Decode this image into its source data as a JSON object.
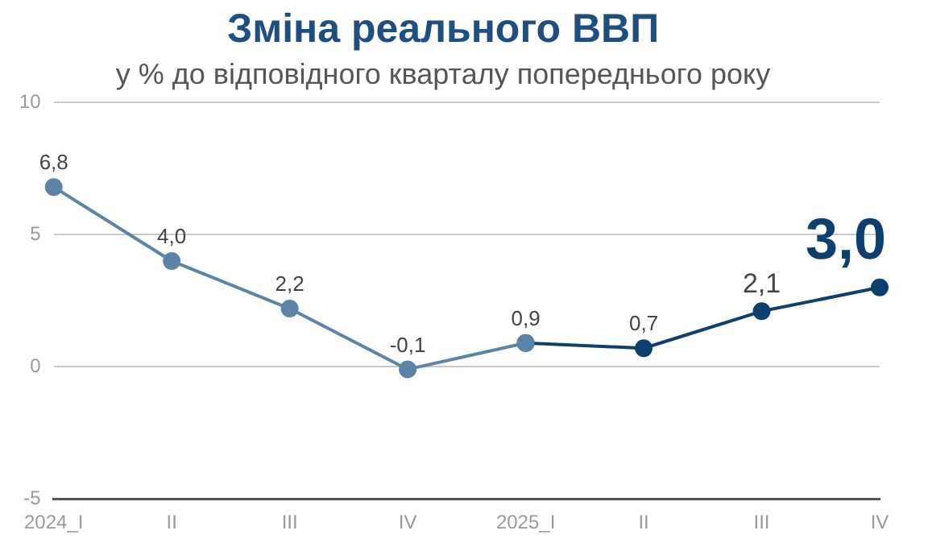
{
  "chart_data": {
    "type": "line",
    "title": "Зміна реального ВВП",
    "subtitle": "у % до відповідного кварталу попереднього року",
    "categories": [
      "2024_I",
      "II",
      "III",
      "IV",
      "2025_I",
      "II",
      "III",
      "IV"
    ],
    "series": [
      {
        "values": [
          6.8,
          4.0,
          2.2,
          -0.1,
          0.9,
          null,
          null,
          null
        ],
        "color": "#5b84a8",
        "value_labels": [
          "6,8",
          "4,0",
          "2,2",
          "-0,1",
          null,
          null,
          null,
          null
        ]
      },
      {
        "values": [
          null,
          null,
          null,
          null,
          0.9,
          0.7,
          2.1,
          3.0
        ],
        "color": "#0f3f6e",
        "value_labels": [
          null,
          null,
          null,
          null,
          "0,9",
          "0,7",
          "2,1",
          "3,0"
        ]
      }
    ],
    "ylim": [
      -5,
      10
    ],
    "yticks": [
      -5,
      0,
      5,
      10
    ],
    "grid": "y",
    "legend": false,
    "marker": "circle",
    "line_style": "solid"
  }
}
